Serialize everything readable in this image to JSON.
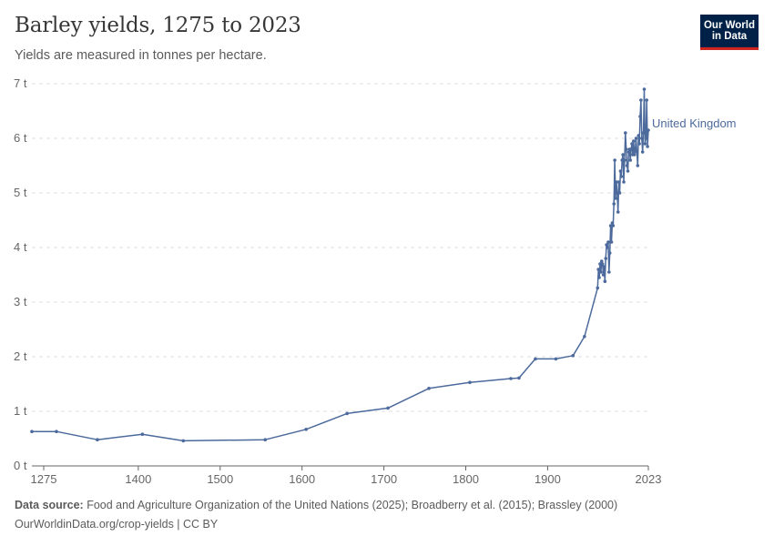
{
  "header": {
    "title": "Barley yields, 1275 to 2023",
    "subtitle": "Yields are measured in tonnes per hectare.",
    "logo_line1": "Our World",
    "logo_line2": "in Data"
  },
  "footer": {
    "source_label": "Data source:",
    "source_text": "Food and Agriculture Organization of the United Nations (2025); Broadberry et al. (2015); Brassley (2000)",
    "license_text": "OurWorldinData.org/crop-yields | CC BY"
  },
  "colors": {
    "series": "#4c6a9c",
    "grid": "#dddddd",
    "axis": "#666666"
  },
  "chart_data": {
    "type": "line",
    "title": "Barley yields, 1275 to 2023",
    "subtitle": "Yields are measured in tonnes per hectare.",
    "xlim": [
      1270,
      2023
    ],
    "ylim": [
      0,
      7
    ],
    "x_ticks": [
      "1275",
      "1400",
      "1500",
      "1600",
      "1700",
      "1800",
      "1900",
      "2023"
    ],
    "y_ticks": [
      "0 t",
      "1 t",
      "2 t",
      "3 t",
      "4 t",
      "5 t",
      "6 t",
      "7 t"
    ],
    "grid": "horizontal dashed",
    "legend": "inline label at end of line",
    "series": [
      {
        "name": "United Kingdom",
        "x": [
          1270,
          1300,
          1350,
          1405,
          1455,
          1555,
          1605,
          1655,
          1705,
          1755,
          1805,
          1855,
          1865,
          1885,
          1910,
          1931,
          1945,
          1961,
          1962,
          1963,
          1964,
          1965,
          1966,
          1967,
          1968,
          1969,
          1970,
          1971,
          1972,
          1973,
          1974,
          1975,
          1976,
          1977,
          1978,
          1979,
          1980,
          1981,
          1982,
          1983,
          1984,
          1985,
          1986,
          1987,
          1988,
          1989,
          1990,
          1991,
          1992,
          1993,
          1994,
          1995,
          1996,
          1997,
          1998,
          1999,
          2000,
          2001,
          2002,
          2003,
          2004,
          2005,
          2006,
          2007,
          2008,
          2009,
          2010,
          2011,
          2012,
          2013,
          2014,
          2015,
          2016,
          2017,
          2018,
          2019,
          2020,
          2021,
          2022,
          2023
        ],
        "y": [
          0.63,
          0.63,
          0.48,
          0.58,
          0.46,
          0.48,
          0.67,
          0.96,
          1.06,
          1.42,
          1.53,
          1.6,
          1.61,
          1.96,
          1.96,
          2.02,
          2.37,
          3.26,
          3.6,
          3.45,
          3.7,
          3.55,
          3.75,
          3.7,
          3.5,
          3.65,
          3.38,
          3.8,
          4.05,
          4.0,
          4.1,
          3.55,
          3.9,
          4.4,
          4.1,
          4.45,
          4.4,
          4.8,
          5.6,
          4.9,
          5.2,
          5.0,
          4.65,
          5.2,
          5.0,
          5.4,
          5.3,
          5.6,
          5.7,
          5.2,
          5.6,
          6.1,
          5.8,
          5.5,
          5.4,
          5.75,
          5.8,
          5.6,
          5.8,
          5.9,
          5.7,
          5.95,
          5.7,
          5.8,
          6.0,
          5.75,
          5.5,
          6.05,
          5.9,
          6.4,
          6.7,
          6.0,
          5.75,
          6.1,
          6.9,
          5.9,
          6.0,
          6.7,
          5.85,
          6.15
        ]
      }
    ]
  }
}
